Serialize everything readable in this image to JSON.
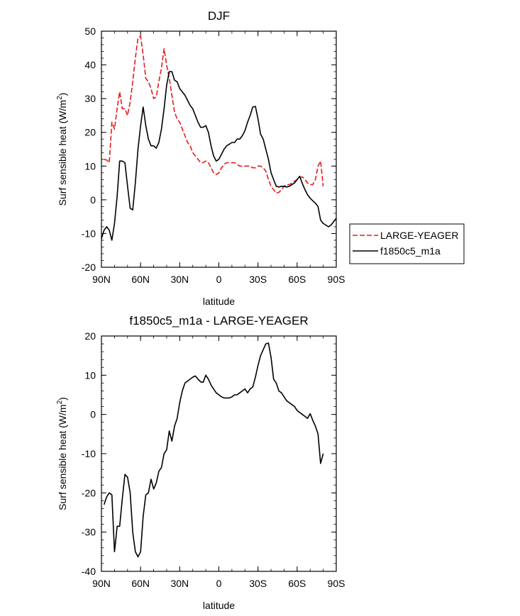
{
  "chart_data": [
    {
      "type": "line",
      "title": "DJF",
      "xlabel": "latitude",
      "ylabel": "Surf sensible heat (W/m²)",
      "ylabel_main": "Surf sensible heat (W/m",
      "ylabel_sup": "2",
      "ylabel_end": ")",
      "xlim": [
        90,
        -90
      ],
      "ylim": [
        -20,
        50
      ],
      "xticks": [
        {
          "value": 90,
          "label": "90N"
        },
        {
          "value": 60,
          "label": "60N"
        },
        {
          "value": 30,
          "label": "30N"
        },
        {
          "value": 0,
          "label": "0"
        },
        {
          "value": -30,
          "label": "30S"
        },
        {
          "value": -60,
          "label": "60S"
        },
        {
          "value": -90,
          "label": "90S"
        }
      ],
      "yticks": [
        -20,
        -10,
        0,
        10,
        20,
        30,
        40,
        50
      ],
      "legend_position": "right",
      "series": [
        {
          "name": "LARGE-YEAGER",
          "color": "#e8191c",
          "dash": "dashed",
          "x": [
            88,
            86,
            84,
            82,
            80,
            78,
            76,
            74,
            72,
            70,
            68,
            66,
            64,
            62,
            60,
            58,
            56,
            54,
            52,
            50,
            48,
            46,
            44,
            42,
            40,
            38,
            36,
            34,
            32,
            30,
            28,
            26,
            24,
            22,
            20,
            18,
            16,
            14,
            12,
            10,
            8,
            6,
            4,
            2,
            0,
            -2,
            -4,
            -6,
            -8,
            -10,
            -12,
            -14,
            -16,
            -18,
            -20,
            -22,
            -24,
            -26,
            -28,
            -30,
            -32,
            -34,
            -36,
            -38,
            -40,
            -42,
            -44,
            -46,
            -48,
            -50,
            -52,
            -54,
            -56,
            -58,
            -60,
            -62,
            -64,
            -66,
            -68,
            -70,
            -72,
            -74,
            -76,
            -78,
            -80
          ],
          "y": [
            12,
            11.8,
            11,
            23,
            21,
            27,
            32,
            27,
            27,
            25,
            29,
            35,
            42,
            48,
            48.5,
            43,
            36,
            35,
            33,
            30,
            30.5,
            35,
            39,
            44.8,
            40,
            36,
            31,
            26,
            24,
            23,
            21,
            19,
            17,
            16,
            14,
            13,
            12,
            11,
            11,
            11.5,
            11,
            9.5,
            8,
            7.5,
            8,
            9.5,
            10.5,
            11,
            11,
            11,
            11,
            10.5,
            10,
            10,
            10,
            10,
            10,
            9.5,
            9.5,
            10,
            10,
            9.5,
            8.5,
            6,
            4,
            3,
            2,
            2.2,
            3,
            4,
            4.5,
            4.5,
            5,
            5.5,
            6,
            6.5,
            6.8,
            6,
            5,
            4.5,
            4.5,
            6,
            10,
            11.5,
            4
          ]
        },
        {
          "name": "f1850c5_m1a",
          "color": "#000000",
          "dash": "solid",
          "x": [
            90,
            88,
            86,
            84,
            82,
            80,
            78,
            76,
            74,
            72,
            70,
            68,
            66,
            64,
            62,
            60,
            58,
            56,
            54,
            52,
            50,
            48,
            46,
            44,
            42,
            40,
            38,
            36,
            34,
            32,
            30,
            28,
            26,
            24,
            22,
            20,
            18,
            16,
            14,
            12,
            10,
            8,
            6,
            4,
            2,
            0,
            -2,
            -4,
            -6,
            -8,
            -10,
            -12,
            -14,
            -16,
            -18,
            -20,
            -22,
            -24,
            -26,
            -28,
            -30,
            -32,
            -34,
            -36,
            -38,
            -40,
            -42,
            -44,
            -46,
            -48,
            -50,
            -52,
            -54,
            -56,
            -58,
            -60,
            -62,
            -64,
            -66,
            -68,
            -70,
            -72,
            -74,
            -76,
            -78,
            -80,
            -82,
            -84,
            -86,
            -88,
            -90
          ],
          "y": [
            -11.5,
            -9,
            -8,
            -9,
            -12,
            -7,
            1,
            11.5,
            11.5,
            11,
            4,
            -2.5,
            -3,
            5,
            15,
            22,
            27.5,
            22,
            18,
            16,
            16,
            15.3,
            17,
            21,
            27,
            34,
            38,
            38,
            35.5,
            35,
            33,
            32,
            31,
            29.5,
            28,
            27,
            25,
            23,
            21.5,
            21.5,
            22,
            20,
            16,
            13,
            11.5,
            12,
            13.5,
            15,
            16,
            16.5,
            17,
            17,
            18,
            18,
            19,
            20.5,
            23,
            25,
            27.5,
            27.7,
            24,
            19.5,
            18,
            15,
            12,
            8,
            6,
            4,
            3.8,
            4,
            4,
            3.8,
            4,
            4.5,
            5,
            6,
            7,
            4.8,
            3,
            1.5,
            0.5,
            -0.3,
            -1,
            -2,
            -6,
            -7,
            -7.5,
            -8,
            -7.5,
            -6.5,
            -5.5
          ]
        }
      ]
    },
    {
      "type": "line",
      "title": "f1850c5_m1a - LARGE-YEAGER",
      "xlabel": "latitude",
      "ylabel": "Surf sensible heat (W/m²)",
      "ylabel_main": "Surf sensible heat (W/m",
      "ylabel_sup": "2",
      "ylabel_end": ")",
      "xlim": [
        90,
        -90
      ],
      "ylim": [
        -40,
        20
      ],
      "xticks": [
        {
          "value": 90,
          "label": "90N"
        },
        {
          "value": 60,
          "label": "60N"
        },
        {
          "value": 30,
          "label": "30N"
        },
        {
          "value": 0,
          "label": "0"
        },
        {
          "value": -30,
          "label": "30S"
        },
        {
          "value": -60,
          "label": "60S"
        },
        {
          "value": -90,
          "label": "90S"
        }
      ],
      "yticks": [
        -40,
        -30,
        -20,
        -10,
        0,
        10,
        20
      ],
      "series": [
        {
          "name": "",
          "color": "#000000",
          "dash": "solid",
          "x": [
            88,
            86,
            84,
            82,
            80,
            79,
            78,
            77,
            76,
            74,
            72,
            70,
            68,
            66,
            64,
            62,
            60,
            58,
            56,
            54,
            52,
            50,
            48,
            46,
            44,
            42,
            40,
            38,
            36,
            34,
            32,
            30,
            28,
            26,
            24,
            22,
            20,
            18,
            16,
            14,
            12,
            10,
            8,
            6,
            4,
            2,
            0,
            -2,
            -4,
            -6,
            -8,
            -10,
            -12,
            -14,
            -16,
            -18,
            -20,
            -22,
            -24,
            -26,
            -28,
            -30,
            -32,
            -34,
            -36,
            -38,
            -40,
            -42,
            -44,
            -46,
            -48,
            -50,
            -52,
            -54,
            -56,
            -58,
            -60,
            -62,
            -64,
            -66,
            -68,
            -70,
            -72,
            -74,
            -76,
            -78,
            -80
          ],
          "y": [
            -23,
            -21,
            -20,
            -20.5,
            -35,
            -32,
            -28.5,
            -28.5,
            -28.5,
            -21.5,
            -15.3,
            -16,
            -20,
            -30,
            -35,
            -36.3,
            -35,
            -26,
            -20.5,
            -20,
            -16.5,
            -19,
            -17.5,
            -14.5,
            -13.5,
            -10,
            -9,
            -4.2,
            -6.8,
            -3,
            -1,
            3,
            6,
            8,
            8.5,
            9,
            9.5,
            9.8,
            9,
            8.3,
            8.2,
            10,
            9,
            7.5,
            6.5,
            5.5,
            5,
            4.5,
            4.2,
            4.2,
            4.2,
            4.5,
            5,
            5,
            5.5,
            6,
            6.5,
            5.5,
            6.5,
            7,
            9.5,
            12.5,
            15,
            16.5,
            18,
            18.2,
            14.5,
            9,
            8,
            6,
            5.5,
            4.5,
            3.5,
            3,
            2.5,
            2,
            1,
            0.5,
            0,
            -0.5,
            -1,
            0.2,
            -1.5,
            -3,
            -5,
            -12.5,
            -10
          ]
        }
      ]
    }
  ],
  "legend": {
    "items": [
      {
        "label": "LARGE-YEAGER",
        "color": "#e8191c",
        "dash": "dashed"
      },
      {
        "label": "f1850c5_m1a",
        "color": "#000000",
        "dash": "solid"
      }
    ]
  }
}
